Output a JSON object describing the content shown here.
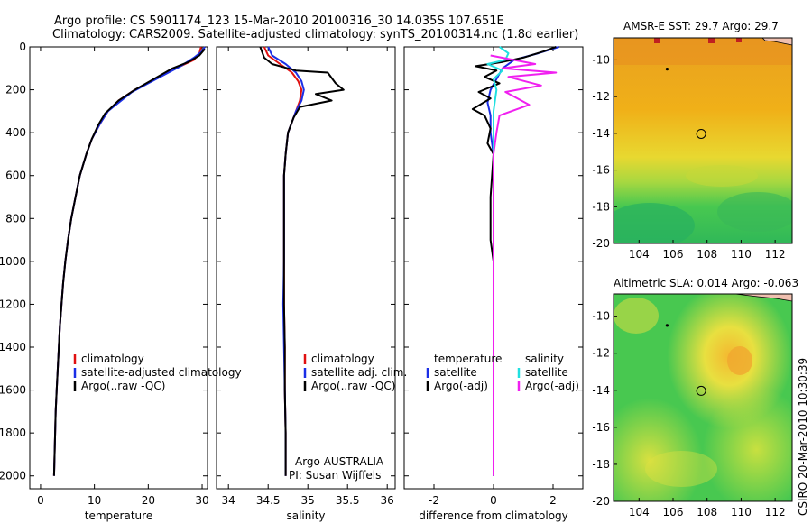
{
  "header": {
    "line1": "Argo profile: CS 5901174_123 15-Mar-2010 20100316_30 14.035S 107.651E",
    "line2": "Climatology: CARS2009. Satellite-adjusted climatology: synTS_20100314.nc (1.8d earlier)"
  },
  "credit": "CSIRO 20-Mar-2010 10:30:39",
  "colors": {
    "clim": "#e01010",
    "sat": "#1a2ee6",
    "argo": "#000000",
    "cyan": "#20e0e0",
    "magenta": "#f020f0"
  },
  "chart_data": [
    {
      "type": "line",
      "id": "temperature",
      "xlabel": "temperature",
      "xlim": [
        -2,
        31
      ],
      "ylim": [
        2060,
        0
      ],
      "xticks": [
        0,
        10,
        20,
        30
      ],
      "yticks": [
        0,
        200,
        400,
        600,
        800,
        1000,
        1200,
        1400,
        1600,
        1800,
        2000
      ],
      "legend": [
        "climatology",
        "satellite-adjusted climatology",
        "Argo(..raw -QC)"
      ],
      "series": [
        {
          "name": "climatology",
          "color": "clim",
          "points": [
            [
              29.8,
              0
            ],
            [
              29.5,
              30
            ],
            [
              28.5,
              60
            ],
            [
              26,
              90
            ],
            [
              23.5,
              120
            ],
            [
              20.5,
              160
            ],
            [
              17.5,
              200
            ],
            [
              14.5,
              250
            ],
            [
              12.5,
              300
            ],
            [
              11,
              360
            ],
            [
              9.5,
              430
            ],
            [
              8.5,
              500
            ],
            [
              7.3,
              600
            ],
            [
              6.5,
              700
            ],
            [
              5.7,
              800
            ],
            [
              5.1,
              900
            ],
            [
              4.6,
              1000
            ],
            [
              4.2,
              1100
            ],
            [
              3.9,
              1200
            ],
            [
              3.6,
              1300
            ],
            [
              3.4,
              1400
            ],
            [
              3.2,
              1500
            ],
            [
              3,
              1600
            ],
            [
              2.8,
              1700
            ],
            [
              2.7,
              1800
            ],
            [
              2.6,
              1900
            ],
            [
              2.5,
              2000
            ]
          ]
        },
        {
          "name": "satellite",
          "color": "sat",
          "points": [
            [
              30.5,
              0
            ],
            [
              30,
              20
            ],
            [
              28.5,
              50
            ],
            [
              26,
              90
            ],
            [
              23,
              130
            ],
            [
              20,
              170
            ],
            [
              17,
              210
            ],
            [
              14.5,
              260
            ],
            [
              12.5,
              300
            ],
            [
              11,
              360
            ],
            [
              9.5,
              430
            ],
            [
              8.5,
              500
            ],
            [
              7.3,
              600
            ],
            [
              6.5,
              700
            ],
            [
              5.7,
              800
            ],
            [
              5.1,
              900
            ],
            [
              4.6,
              1000
            ],
            [
              4.2,
              1100
            ],
            [
              3.9,
              1200
            ],
            [
              3.6,
              1300
            ],
            [
              3.4,
              1400
            ],
            [
              3.2,
              1500
            ],
            [
              3,
              1600
            ],
            [
              2.8,
              1700
            ],
            [
              2.7,
              1800
            ],
            [
              2.6,
              1900
            ],
            [
              2.5,
              2000
            ]
          ]
        },
        {
          "name": "argo",
          "color": "argo",
          "points": [
            [
              30.5,
              10
            ],
            [
              29.5,
              40
            ],
            [
              27.5,
              70
            ],
            [
              24.5,
              100
            ],
            [
              21,
              150
            ],
            [
              17.5,
              200
            ],
            [
              14.5,
              250
            ],
            [
              12,
              310
            ],
            [
              10.8,
              360
            ],
            [
              9.5,
              430
            ],
            [
              8.5,
              500
            ],
            [
              7.3,
              600
            ],
            [
              6.5,
              700
            ],
            [
              5.7,
              800
            ],
            [
              5.1,
              900
            ],
            [
              4.6,
              1000
            ],
            [
              4.2,
              1100
            ],
            [
              3.9,
              1200
            ],
            [
              3.6,
              1300
            ],
            [
              3.4,
              1400
            ],
            [
              3.2,
              1500
            ],
            [
              3,
              1600
            ],
            [
              2.8,
              1700
            ],
            [
              2.7,
              1800
            ],
            [
              2.6,
              1900
            ],
            [
              2.5,
              2000
            ]
          ]
        }
      ]
    },
    {
      "type": "line",
      "id": "salinity",
      "xlabel": "salinity",
      "xlim": [
        33.85,
        36.1
      ],
      "ylim": [
        2060,
        0
      ],
      "xticks": [
        34,
        34.5,
        35,
        35.5,
        36
      ],
      "legend": [
        "climatology",
        "satellite adj. clim.",
        "Argo(..raw -QC)"
      ],
      "annotations": [
        "Argo AUSTRALIA",
        "PI: Susan Wijffels"
      ],
      "series": [
        {
          "name": "climatology",
          "color": "clim",
          "points": [
            [
              34.45,
              0
            ],
            [
              34.5,
              40
            ],
            [
              34.65,
              80
            ],
            [
              34.8,
              120
            ],
            [
              34.88,
              160
            ],
            [
              34.92,
              200
            ],
            [
              34.9,
              250
            ],
            [
              34.85,
              300
            ],
            [
              34.75,
              400
            ],
            [
              34.72,
              500
            ],
            [
              34.7,
              600
            ],
            [
              34.7,
              800
            ],
            [
              34.7,
              1000
            ],
            [
              34.7,
              1200
            ],
            [
              34.71,
              1400
            ],
            [
              34.71,
              1600
            ],
            [
              34.72,
              1800
            ],
            [
              34.72,
              2000
            ]
          ]
        },
        {
          "name": "satellite",
          "color": "sat",
          "points": [
            [
              34.5,
              0
            ],
            [
              34.55,
              40
            ],
            [
              34.72,
              80
            ],
            [
              34.85,
              120
            ],
            [
              34.92,
              160
            ],
            [
              34.95,
              200
            ],
            [
              34.92,
              250
            ],
            [
              34.85,
              300
            ],
            [
              34.75,
              400
            ],
            [
              34.72,
              500
            ],
            [
              34.7,
              600
            ],
            [
              34.7,
              800
            ],
            [
              34.7,
              1000
            ],
            [
              34.69,
              1200
            ],
            [
              34.7,
              1400
            ],
            [
              34.71,
              1600
            ],
            [
              34.72,
              1800
            ],
            [
              34.72,
              2000
            ]
          ]
        },
        {
          "name": "argo",
          "color": "argo",
          "points": [
            [
              34.4,
              0
            ],
            [
              34.45,
              50
            ],
            [
              34.55,
              80
            ],
            [
              34.75,
              100
            ],
            [
              34.85,
              110
            ],
            [
              35.25,
              120
            ],
            [
              35.35,
              170
            ],
            [
              35.45,
              200
            ],
            [
              35.1,
              220
            ],
            [
              35.3,
              250
            ],
            [
              34.9,
              280
            ],
            [
              34.82,
              330
            ],
            [
              34.75,
              400
            ],
            [
              34.72,
              500
            ],
            [
              34.7,
              600
            ],
            [
              34.7,
              800
            ],
            [
              34.7,
              1000
            ],
            [
              34.7,
              1200
            ],
            [
              34.71,
              1400
            ],
            [
              34.71,
              1600
            ],
            [
              34.72,
              1800
            ],
            [
              34.72,
              2000
            ]
          ]
        }
      ]
    },
    {
      "type": "line",
      "id": "difference",
      "xlabel": "difference from climatology",
      "xlim": [
        -3,
        3
      ],
      "ylim": [
        2060,
        0
      ],
      "xticks": [
        -2,
        0,
        2
      ],
      "legend_left": [
        "temperature",
        "satellite",
        "Argo(-adj)"
      ],
      "legend_right": [
        "salinity",
        "satellite",
        "Argo(-adj)"
      ],
      "series": [
        {
          "name": "temp satellite",
          "color": "sat",
          "points": [
            [
              2.2,
              0
            ],
            [
              1.5,
              30
            ],
            [
              0.7,
              60
            ],
            [
              0.3,
              100
            ],
            [
              0.1,
              150
            ],
            [
              -0.1,
              200
            ],
            [
              -0.2,
              260
            ],
            [
              -0.1,
              320
            ],
            [
              -0.1,
              400
            ],
            [
              0,
              500
            ],
            [
              0,
              700
            ],
            [
              0,
              1000
            ],
            [
              0,
              1500
            ],
            [
              0,
              2000
            ]
          ]
        },
        {
          "name": "temp argo",
          "color": "argo",
          "points": [
            [
              2.1,
              0
            ],
            [
              1.7,
              20
            ],
            [
              1,
              50
            ],
            [
              0.3,
              70
            ],
            [
              -0.6,
              90
            ],
            [
              0.1,
              110
            ],
            [
              -0.3,
              140
            ],
            [
              0.2,
              170
            ],
            [
              -0.5,
              210
            ],
            [
              -0.1,
              240
            ],
            [
              -0.7,
              290
            ],
            [
              -0.3,
              320
            ],
            [
              -0.1,
              380
            ],
            [
              -0.2,
              450
            ],
            [
              0,
              500
            ],
            [
              -0.1,
              700
            ],
            [
              -0.1,
              900
            ],
            [
              0,
              1000
            ],
            [
              0,
              1500
            ],
            [
              0,
              2000
            ]
          ]
        },
        {
          "name": "sal satellite",
          "color": "cyan",
          "points": [
            [
              0.2,
              0
            ],
            [
              0.5,
              30
            ],
            [
              0.4,
              60
            ],
            [
              -0.2,
              80
            ],
            [
              0.3,
              110
            ],
            [
              0,
              150
            ],
            [
              0.1,
              200
            ],
            [
              0,
              300
            ],
            [
              0,
              500
            ],
            [
              0,
              1000
            ],
            [
              0,
              1500
            ],
            [
              0,
              2000
            ]
          ]
        },
        {
          "name": "sal argo",
          "color": "magenta",
          "points": [
            [
              -0.1,
              40
            ],
            [
              1.4,
              80
            ],
            [
              0.3,
              100
            ],
            [
              2.1,
              120
            ],
            [
              0.5,
              140
            ],
            [
              1.6,
              180
            ],
            [
              0.4,
              210
            ],
            [
              1.2,
              270
            ],
            [
              0.2,
              320
            ],
            [
              0.1,
              400
            ],
            [
              0,
              500
            ],
            [
              0,
              1000
            ],
            [
              0,
              1500
            ],
            [
              0,
              2000
            ]
          ]
        }
      ]
    },
    {
      "type": "heatmap",
      "id": "sst-map",
      "title": "AMSR-E SST: 29.7 Argo: 29.7",
      "xlim": [
        102.5,
        113
      ],
      "ylim": [
        -20,
        -8.8
      ],
      "xticks": [
        104,
        106,
        108,
        110,
        112
      ],
      "yticks": [
        -10,
        -12,
        -14,
        -16,
        -18,
        -20
      ],
      "marker_circle": [
        107.65,
        -14.03
      ],
      "marker_dot": [
        105.65,
        -10.5
      ]
    },
    {
      "type": "heatmap",
      "id": "sla-map",
      "title": "Altimetric SLA: 0.014 Argo: -0.063",
      "xlim": [
        102.5,
        113
      ],
      "ylim": [
        -20,
        -8.8
      ],
      "xticks": [
        104,
        106,
        108,
        110,
        112
      ],
      "yticks": [
        -10,
        -12,
        -14,
        -16,
        -18,
        -20
      ],
      "marker_circle": [
        107.65,
        -14.03
      ],
      "marker_dot": [
        105.65,
        -10.5
      ]
    }
  ]
}
